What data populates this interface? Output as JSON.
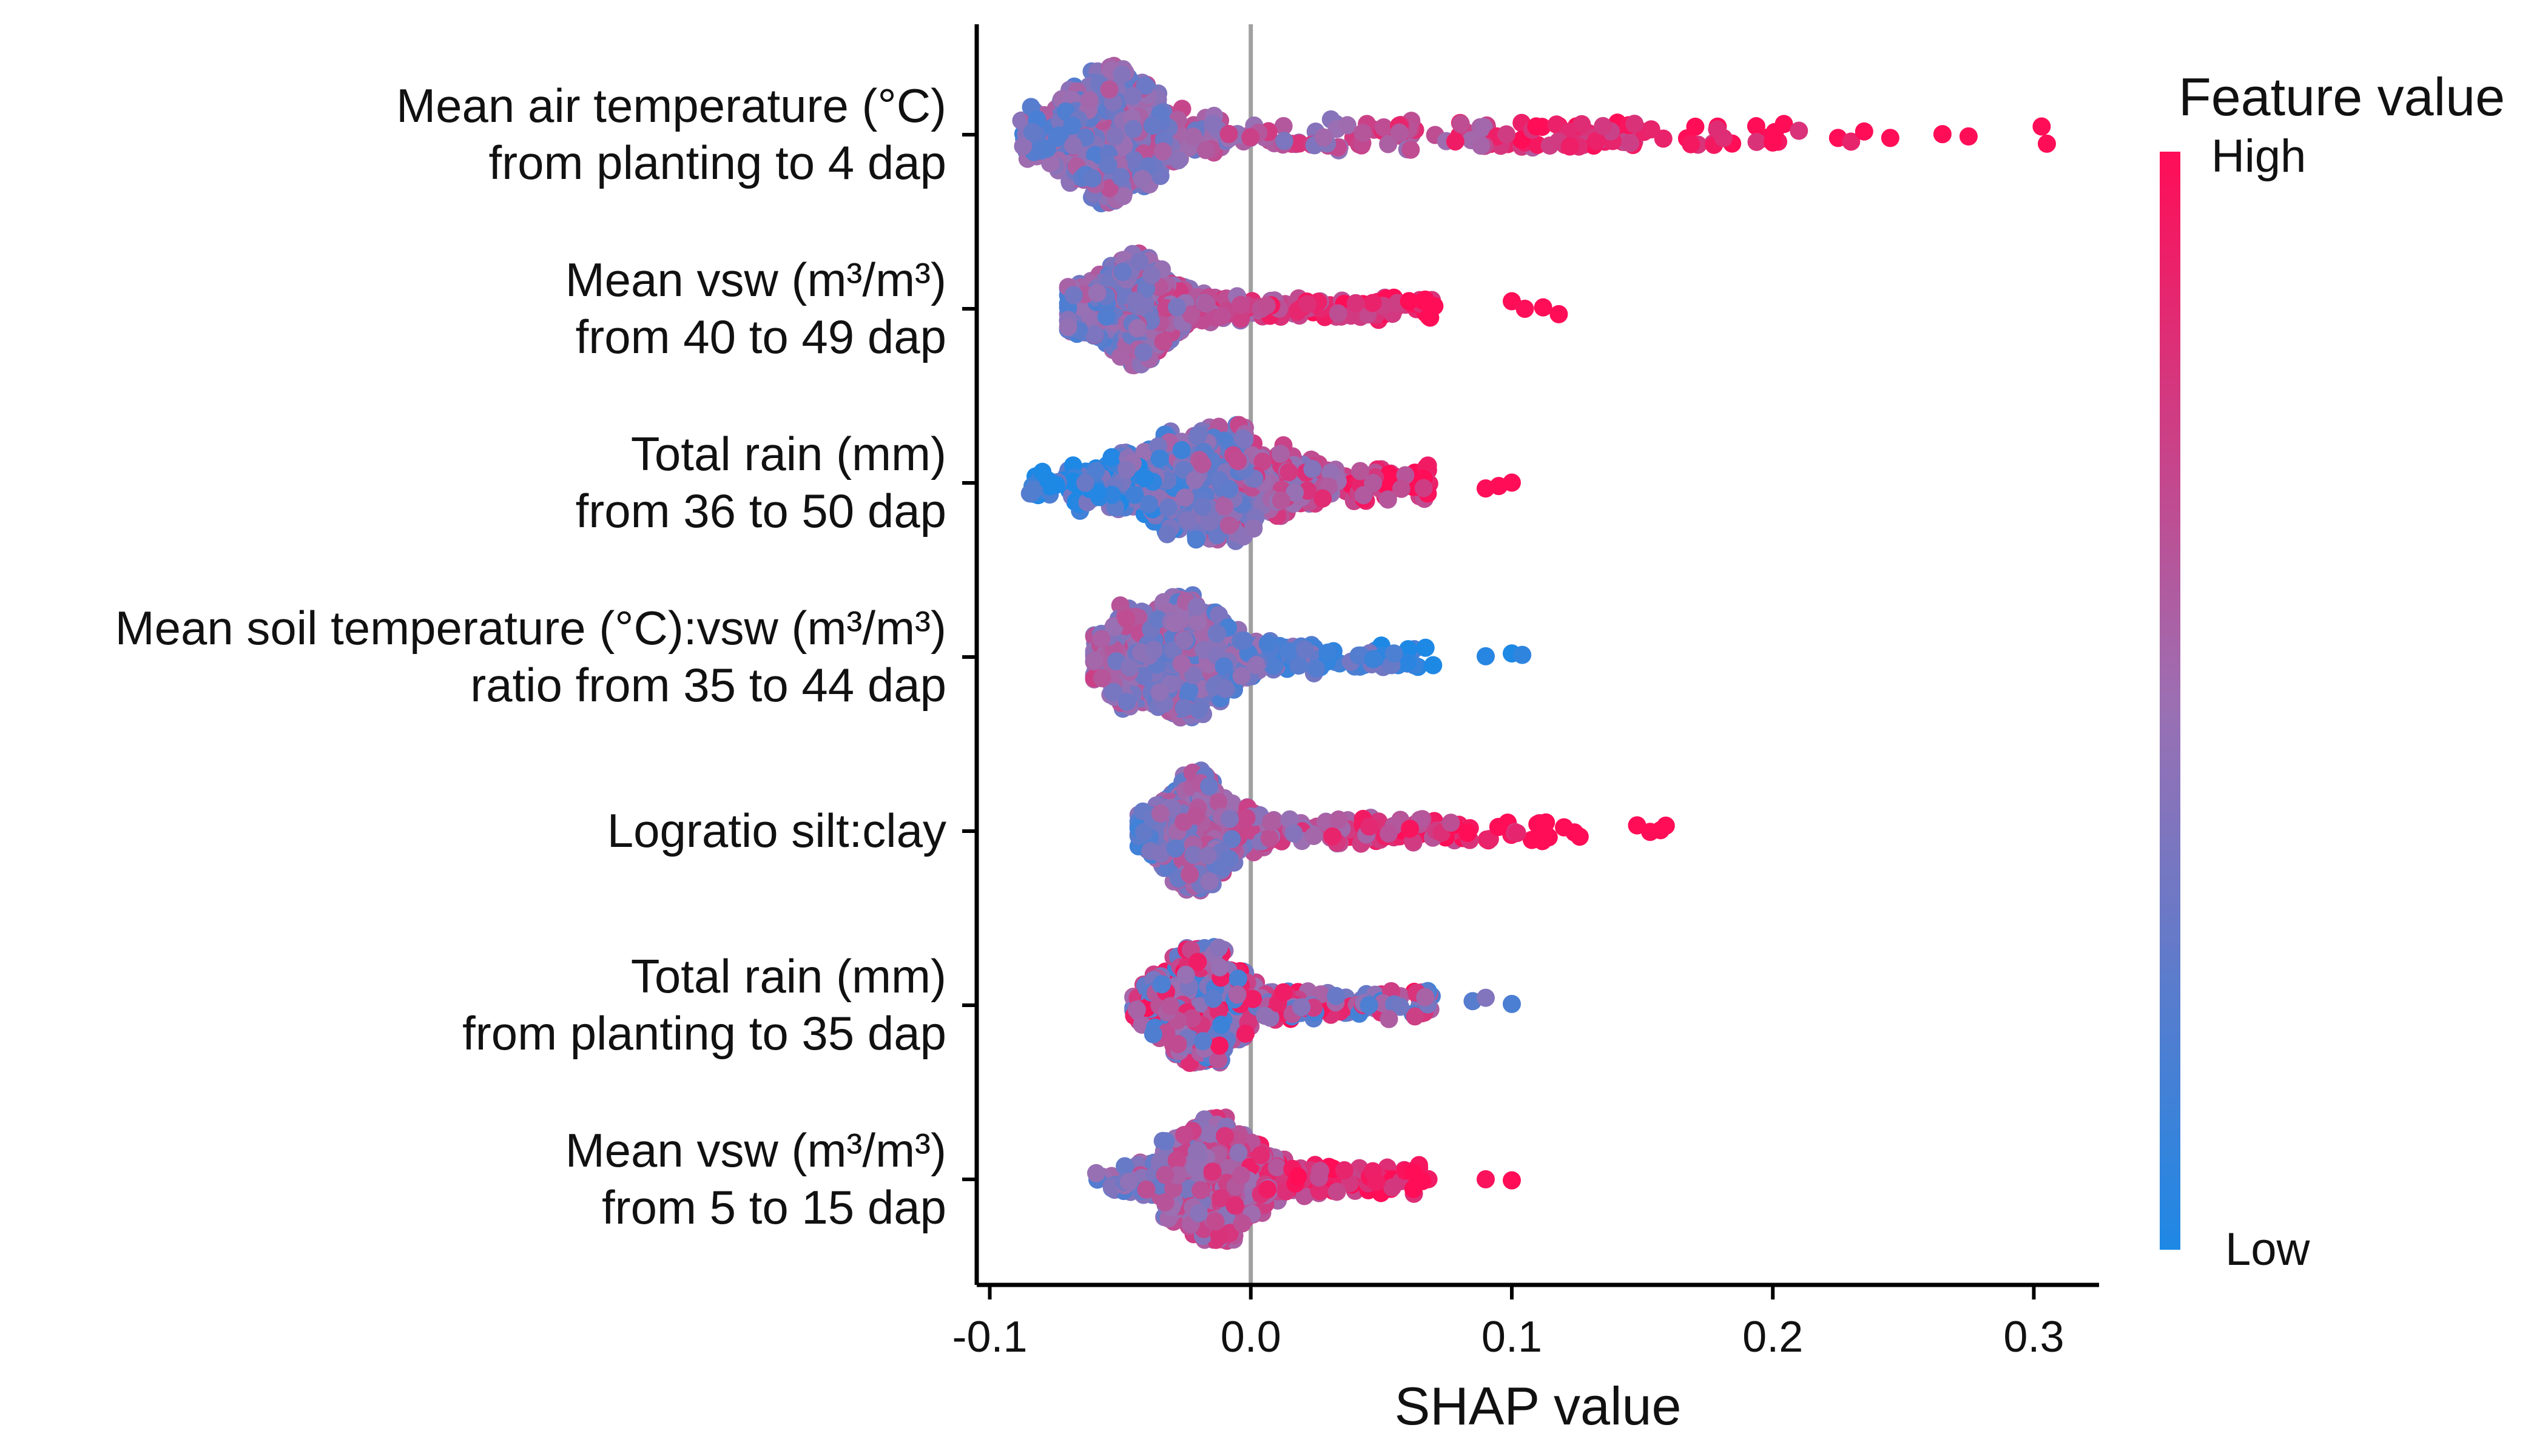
{
  "chart_data": {
    "type": "scatter",
    "subtype": "shap-beeswarm",
    "title": "",
    "xlabel": "SHAP value",
    "ylabel": "",
    "xlim": [
      -0.105,
      0.325
    ],
    "xticks": [
      -0.1,
      0.0,
      0.1,
      0.2,
      0.3
    ],
    "xtick_labels": [
      "-0.1",
      "0.0",
      "0.1",
      "0.2",
      "0.3"
    ],
    "zero_line": 0.0,
    "features": [
      {
        "name_lines": [
          "Mean air temperature (°C)",
          "from planting to 4 dap"
        ],
        "shap_min": -0.088,
        "shap_max": 0.305,
        "bulk_center": -0.055,
        "bulk_spread": 0.022,
        "bulk_height": 0.95,
        "tail_points": [
          0.2,
          0.21,
          0.225,
          0.23,
          0.235,
          0.245,
          0.265,
          0.275,
          0.303,
          0.305
        ],
        "color_trend": "high values push right"
      },
      {
        "name_lines": [
          "Mean vsw (m³/m³)",
          "from 40 to 49 dap"
        ],
        "shap_min": -0.07,
        "shap_max": 0.118,
        "bulk_center": -0.045,
        "bulk_spread": 0.02,
        "bulk_height": 0.8,
        "tail_points": [
          0.1,
          0.105,
          0.112,
          0.118
        ],
        "color_trend": "high values push right"
      },
      {
        "name_lines": [
          "Total rain (mm)",
          "from 36 to 50 dap"
        ],
        "shap_min": -0.085,
        "shap_max": 0.1,
        "bulk_center": -0.02,
        "bulk_spread": 0.04,
        "bulk_height": 0.8,
        "tail_points": [
          0.09,
          0.095,
          0.1
        ],
        "color_trend": "high values push right, low values push left"
      },
      {
        "name_lines": [
          "Mean soil temperature (°C):vsw (m³/m³)",
          "ratio from 35 to 44 dap"
        ],
        "shap_min": -0.06,
        "shap_max": 0.104,
        "bulk_center": -0.03,
        "bulk_spread": 0.025,
        "bulk_height": 0.85,
        "tail_points": [
          0.09,
          0.1,
          0.104
        ],
        "color_trend": "low values push right"
      },
      {
        "name_lines": [
          "Logratio silt:clay"
        ],
        "shap_min": -0.043,
        "shap_max": 0.159,
        "bulk_center": -0.02,
        "bulk_spread": 0.018,
        "bulk_height": 0.85,
        "tail_points": [
          0.113,
          0.12,
          0.124,
          0.126,
          0.148,
          0.153,
          0.157,
          0.159
        ],
        "color_trend": "high values push right"
      },
      {
        "name_lines": [
          "Total rain (mm)",
          "from planting to 35 dap"
        ],
        "shap_min": -0.045,
        "shap_max": 0.1,
        "bulk_center": -0.02,
        "bulk_spread": 0.018,
        "bulk_height": 0.8,
        "tail_points": [
          0.085,
          0.09,
          0.1
        ],
        "color_trend": "mixed"
      },
      {
        "name_lines": [
          "Mean vsw (m³/m³)",
          "from 5 to 15 dap"
        ],
        "shap_min": -0.06,
        "shap_max": 0.1,
        "bulk_center": -0.015,
        "bulk_spread": 0.02,
        "bulk_height": 0.85,
        "tail_points": [
          0.09,
          0.1
        ],
        "color_trend": "high values push right"
      }
    ],
    "legend": {
      "title": "Feature value",
      "high_label": "High",
      "low_label": "Low",
      "position": "right",
      "color_high": "#ff0d57",
      "color_low": "#1e88e5"
    }
  }
}
